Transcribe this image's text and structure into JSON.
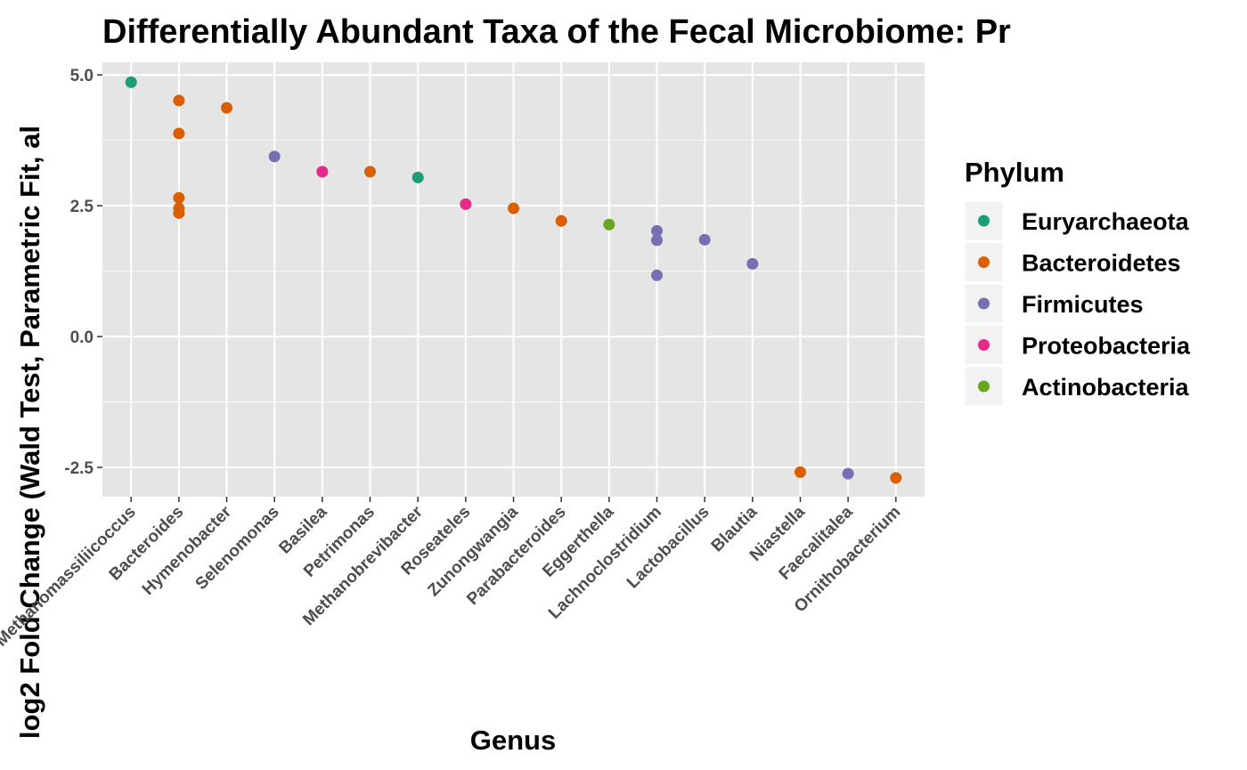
{
  "chart_data": {
    "type": "scatter",
    "title": "Differentially Abundant Taxa of the Fecal Microbiome: Pr",
    "x_label": "Genus",
    "y_label": "log2 Fold Change (Wald Test, Parametric Fit, al",
    "legend_title": "Phylum",
    "categories": [
      "Methanomassiliicoccus",
      "Bacteroides",
      "Hymenobacter",
      "Selenomonas",
      "Basilea",
      "Petrimonas",
      "Methanobrevibacter",
      "Roseateles",
      "Zunongwangia",
      "Parabacteroides",
      "Eggerthella",
      "Lachnoclostridium",
      "Lactobacillus",
      "Blautia",
      "Niastella",
      "Faecalitalea",
      "Ornithobacterium"
    ],
    "ylim": [
      -3.06,
      5.24
    ],
    "yticks": [
      -2.5,
      {
        "value": 0,
        "label": "0.0"
      },
      2.5,
      {
        "value": 5,
        "label": "5.0"
      }
    ],
    "grid": true,
    "series": [
      {
        "name": "Euryarchaeota",
        "color": "#1b9e77",
        "x": [
          "Methanomassiliicoccus",
          "Methanobrevibacter"
        ],
        "values": [
          4.86,
          3.04
        ]
      },
      {
        "name": "Bacteroidetes",
        "color": "#d95f02",
        "x": [
          "Bacteroides",
          "Bacteroides",
          "Bacteroides",
          "Bacteroides",
          "Bacteroides",
          "Hymenobacter",
          "Petrimonas",
          "Zunongwangia",
          "Parabacteroides",
          "Niastella",
          "Ornithobacterium"
        ],
        "values": [
          4.51,
          3.88,
          2.65,
          2.45,
          2.36,
          4.37,
          3.15,
          2.45,
          2.21,
          -2.59,
          -2.7
        ]
      },
      {
        "name": "Firmicutes",
        "color": "#7570b3",
        "x": [
          "Selenomonas",
          "Lachnoclostridium",
          "Lachnoclostridium",
          "Lachnoclostridium",
          "Lactobacillus",
          "Blautia",
          "Faecalitalea"
        ],
        "values": [
          3.44,
          2.02,
          1.84,
          1.17,
          1.85,
          1.39,
          -2.62
        ]
      },
      {
        "name": "Proteobacteria",
        "color": "#e7298a",
        "x": [
          "Basilea",
          "Roseateles"
        ],
        "values": [
          3.15,
          2.53
        ]
      },
      {
        "name": "Actinobacteria",
        "color": "#66a61e",
        "x": [
          "Eggerthella"
        ],
        "values": [
          2.14
        ]
      }
    ]
  }
}
